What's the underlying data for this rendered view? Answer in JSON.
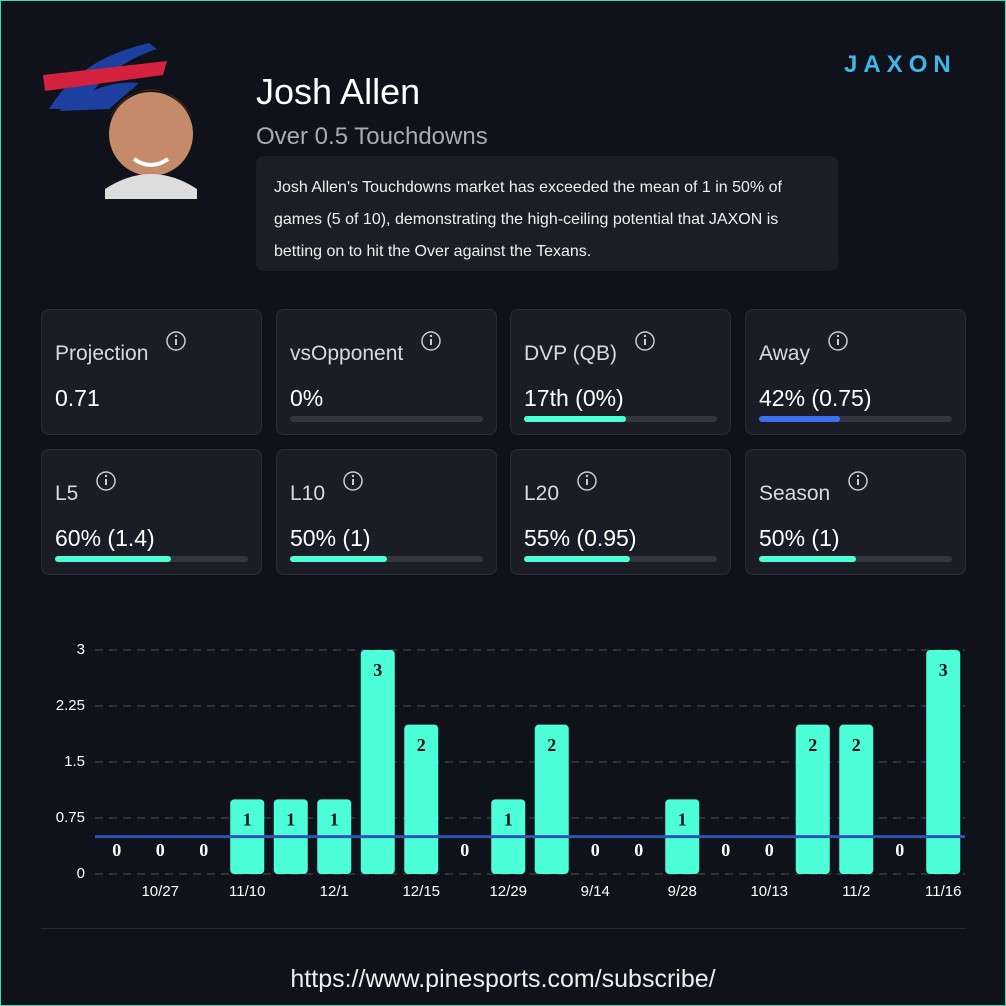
{
  "header": {
    "name": "Josh Allen",
    "subtitle": "Over 0.5 Touchdowns",
    "description": "Josh Allen's Touchdowns market has exceeded the mean of 1 in 50% of games (5 of 10), demonstrating the high-ceiling potential that JAXON is betting on to hit the Over against the Texans.",
    "logo": "JAXON"
  },
  "cards": [
    {
      "label": "Projection",
      "value": "0.71"
    },
    {
      "label": "vsOpponent",
      "value": "0%",
      "progress": 0
    },
    {
      "label": "DVP (QB)",
      "value": "17th (0%)",
      "progress": 53
    },
    {
      "label": "Away",
      "value": "42% (0.75)",
      "progress": 42,
      "color": "#3d6ff0"
    },
    {
      "label": "L5",
      "value": "60% (1.4)",
      "progress": 60
    },
    {
      "label": "L10",
      "value": "50% (1)",
      "progress": 50
    },
    {
      "label": "L20",
      "value": "55% (0.95)",
      "progress": 55
    },
    {
      "label": "Season",
      "value": "50% (1)",
      "progress": 50
    }
  ],
  "chart_data": {
    "type": "bar",
    "categories": [
      null,
      "10/27",
      null,
      "11/10",
      null,
      "12/1",
      null,
      "12/15",
      null,
      "12/29",
      null,
      "9/14",
      null,
      "9/28",
      null,
      "10/13",
      null,
      "11/2",
      null,
      "11/16"
    ],
    "values": [
      0,
      0,
      0,
      1,
      1,
      1,
      3,
      2,
      0,
      1,
      2,
      0,
      0,
      1,
      0,
      0,
      2,
      2,
      0,
      3
    ],
    "color": "#4dffd9",
    "threshold": 0.5,
    "threshold_color": "#2f55b0",
    "ylim": [
      0,
      3
    ],
    "yticks": [
      0,
      0.75,
      1.5,
      2.25,
      3
    ],
    "grid": true
  },
  "footer": {
    "url": "https://www.pinesports.com/subscribe/"
  }
}
